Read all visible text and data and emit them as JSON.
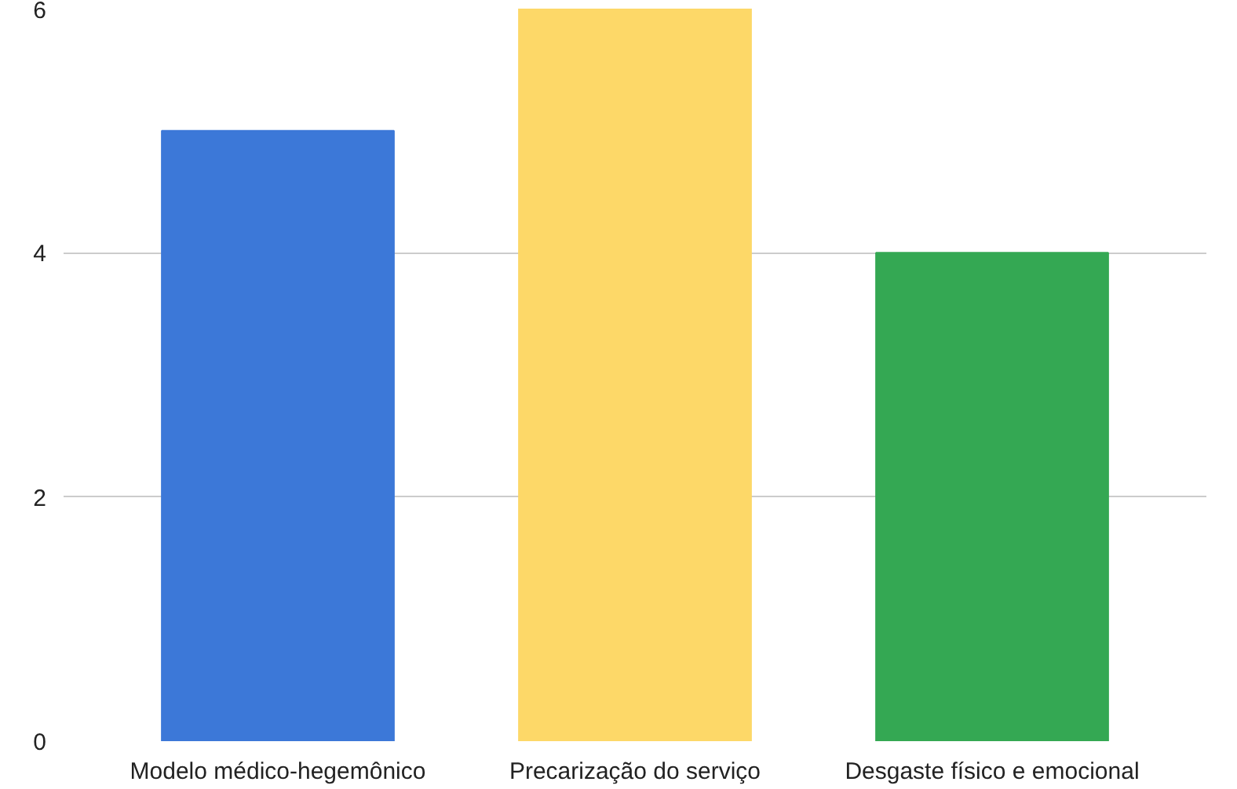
{
  "chart_data": {
    "type": "bar",
    "categories": [
      "Modelo médico-hegemônico",
      "Precarização do serviço",
      "Desgaste físico e emocional"
    ],
    "values": [
      5,
      6,
      4
    ],
    "colors": [
      "#3c78d8",
      "#fdd868",
      "#34a853"
    ],
    "ylim": [
      0,
      6
    ],
    "yticks": [
      0,
      2,
      4,
      6
    ],
    "grid": "y"
  }
}
